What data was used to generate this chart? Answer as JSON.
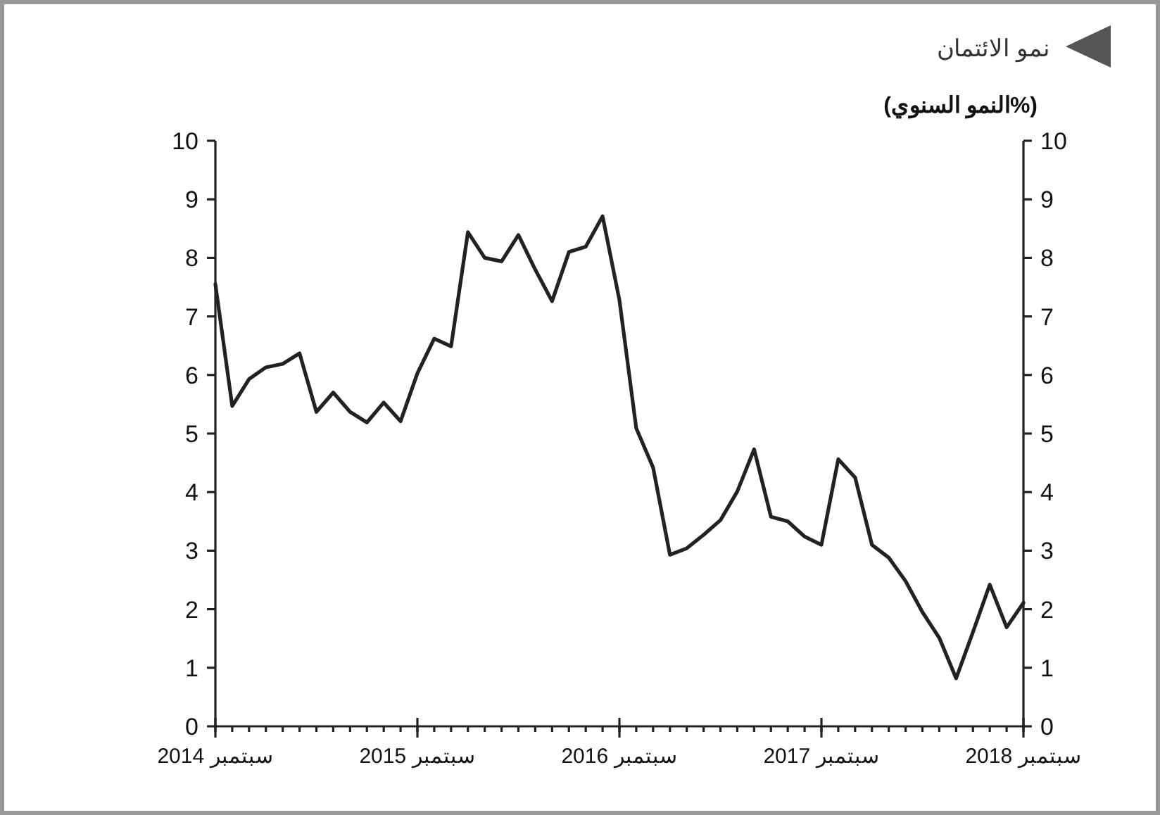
{
  "chart_data": {
    "type": "line",
    "title": "نمو الائتمان",
    "subtitle": "(%النمو السنوي)",
    "x": [
      "2014-09",
      "2014-10",
      "2014-11",
      "2014-12",
      "2015-01",
      "2015-02",
      "2015-03",
      "2015-04",
      "2015-05",
      "2015-06",
      "2015-07",
      "2015-08",
      "2015-09",
      "2015-10",
      "2015-11",
      "2015-12",
      "2016-01",
      "2016-02",
      "2016-03",
      "2016-04",
      "2016-05",
      "2016-06",
      "2016-07",
      "2016-08",
      "2016-09",
      "2016-10",
      "2016-11",
      "2016-12",
      "2017-01",
      "2017-02",
      "2017-03",
      "2017-04",
      "2017-05",
      "2017-06",
      "2017-07",
      "2017-08",
      "2017-09",
      "2017-10",
      "2017-11",
      "2017-12",
      "2018-01",
      "2018-02",
      "2018-03",
      "2018-04",
      "2018-05",
      "2018-06",
      "2018-07",
      "2018-08",
      "2018-09"
    ],
    "series": [
      {
        "color": "#222222",
        "values": [
          7.55,
          5.47,
          5.93,
          6.13,
          6.19,
          6.37,
          5.37,
          5.7,
          5.37,
          5.19,
          5.53,
          5.21,
          6.03,
          6.62,
          6.49,
          8.44,
          8.0,
          7.94,
          8.39,
          7.8,
          7.26,
          8.1,
          8.19,
          8.71,
          7.28,
          5.09,
          4.42,
          2.93,
          3.04,
          3.27,
          3.52,
          4.01,
          4.73,
          3.58,
          3.5,
          3.24,
          3.1,
          4.56,
          4.25,
          3.1,
          2.88,
          2.48,
          1.95,
          1.51,
          0.82,
          1.61,
          2.42,
          1.69,
          2.11
        ]
      }
    ],
    "xlim": [
      "2014-09",
      "2018-09"
    ],
    "xticks": [
      {
        "value": "2014-09",
        "label": "سبتمبر 2014"
      },
      {
        "value": "2015-09",
        "label": "سبتمبر 2015"
      },
      {
        "value": "2016-09",
        "label": "سبتمبر 2016"
      },
      {
        "value": "2017-09",
        "label": "سبتمبر 2017"
      },
      {
        "value": "2018-09",
        "label": "سبتمبر 2018"
      }
    ],
    "ylim": [
      0,
      10
    ],
    "yticks": [
      0,
      1,
      2,
      3,
      4,
      5,
      6,
      7,
      8,
      9,
      10
    ],
    "y2lim": [
      0,
      10
    ],
    "y2ticks": [
      0,
      1,
      2,
      3,
      4,
      5,
      6,
      7,
      8,
      9,
      10
    ],
    "line_style": "solid",
    "marker": "none",
    "grid": false
  }
}
